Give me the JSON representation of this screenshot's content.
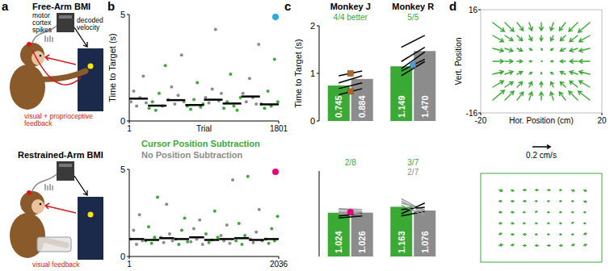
{
  "diagram": {
    "panel_labels": [
      "a",
      "b",
      "c",
      "d"
    ],
    "free_arm": {
      "title": "Free-Arm BMI",
      "spikes": [
        "motor",
        "cortex",
        "spikes"
      ],
      "decoder": [
        "decoded",
        "velocity"
      ],
      "feedback": [
        "visual + proprioceptive",
        "feedback"
      ]
    },
    "restrained_arm": {
      "title": "Restrained-Arm BMI",
      "feedback": [
        "visual feedback"
      ]
    }
  },
  "chart_data": [
    {
      "type": "scatter",
      "ylabel": "Time to Target (s)",
      "xlabel": "Trial",
      "xlim": [
        1,
        1801
      ],
      "xticks": [
        1,
        1801
      ],
      "ylim": [
        0,
        5
      ],
      "yticks": [
        0,
        5
      ],
      "legend": "bottom",
      "series": [
        {
          "name": "Cursor Position Subtraction",
          "color": "#3aaa35",
          "marker": "circle",
          "x": [
            240,
            280,
            320,
            360,
            400,
            435,
            700,
            740,
            780,
            820,
            860,
            890,
            1140,
            1180,
            1220,
            1260,
            1300,
            1340,
            1590,
            1630,
            1670,
            1710,
            1750,
            1790
          ],
          "values": [
            0.6,
            0.9,
            0.5,
            1.3,
            0.7,
            2.6,
            0.7,
            0.55,
            1.0,
            1.8,
            0.65,
            0.8,
            0.6,
            0.9,
            2.2,
            0.7,
            0.5,
            1.1,
            0.8,
            0.6,
            1.4,
            0.7,
            2.9,
            0.9
          ]
        },
        {
          "name": "No Position Subtraction",
          "color": "#8c8c8c",
          "marker": "circle",
          "x": [
            20,
            55,
            90,
            130,
            170,
            205,
            470,
            510,
            550,
            590,
            630,
            660,
            920,
            960,
            1000,
            1040,
            1080,
            1110,
            1370,
            1410,
            1450,
            1490,
            1530,
            1560
          ],
          "values": [
            0.9,
            1.4,
            0.7,
            1.1,
            2.1,
            0.85,
            1.0,
            1.6,
            0.8,
            1.2,
            3.1,
            0.9,
            1.1,
            0.85,
            1.5,
            4.3,
            0.95,
            1.3,
            1.3,
            0.9,
            2.0,
            1.1,
            0.8,
            3.6
          ]
        }
      ],
      "block_means": [
        {
          "start": 1,
          "end": 225,
          "value": 1.05
        },
        {
          "start": 226,
          "end": 450,
          "value": 0.72
        },
        {
          "start": 451,
          "end": 675,
          "value": 0.98
        },
        {
          "start": 676,
          "end": 900,
          "value": 0.75
        },
        {
          "start": 901,
          "end": 1125,
          "value": 1.0
        },
        {
          "start": 1126,
          "end": 1350,
          "value": 0.82
        },
        {
          "start": 1351,
          "end": 1575,
          "value": 1.15
        },
        {
          "start": 1576,
          "end": 1801,
          "value": 0.78
        }
      ],
      "highlight": {
        "color": "#29abe2",
        "marker": "circle"
      }
    },
    {
      "type": "scatter",
      "xlim": [
        1,
        2036
      ],
      "xticks": [
        1,
        2036
      ],
      "ylim": [
        0,
        5
      ],
      "yticks": [
        0,
        5
      ],
      "series": [
        {
          "color": "#3aaa35",
          "marker": "circle",
          "x": [
            225,
            265,
            305,
            345,
            385,
            635,
            675,
            715,
            755,
            795,
            1045,
            1085,
            1125,
            1165,
            1205,
            1455,
            1495,
            1535,
            1575,
            1615,
            1860,
            1900,
            1940,
            1980,
            2020
          ],
          "values": [
            0.9,
            1.7,
            0.75,
            1.1,
            3.4,
            1.0,
            0.7,
            1.5,
            2.2,
            0.85,
            1.3,
            0.8,
            0.95,
            2.6,
            1.1,
            0.9,
            1.9,
            0.7,
            1.2,
            4.6,
            1.0,
            0.75,
            1.6,
            0.9,
            2.3
          ]
        },
        {
          "color": "#8c8c8c",
          "marker": "circle",
          "x": [
            20,
            60,
            100,
            140,
            180,
            430,
            470,
            510,
            550,
            590,
            840,
            880,
            920,
            960,
            1000,
            1250,
            1290,
            1330,
            1370,
            1410,
            1650,
            1690,
            1730,
            1770,
            1810
          ],
          "values": [
            1.0,
            1.5,
            0.7,
            2.4,
            0.9,
            1.1,
            0.8,
            3.0,
            1.3,
            0.9,
            0.85,
            1.6,
            1.0,
            2.1,
            0.7,
            1.2,
            0.9,
            1.8,
            0.75,
            4.4,
            1.0,
            0.8,
            1.4,
            2.7,
            0.9
          ]
        }
      ],
      "block_means": [
        {
          "start": 1,
          "end": 204,
          "value": 1.0
        },
        {
          "start": 205,
          "end": 408,
          "value": 0.95
        },
        {
          "start": 409,
          "end": 612,
          "value": 1.05
        },
        {
          "start": 613,
          "end": 816,
          "value": 1.0
        },
        {
          "start": 817,
          "end": 1020,
          "value": 1.1
        },
        {
          "start": 1021,
          "end": 1224,
          "value": 0.95
        },
        {
          "start": 1225,
          "end": 1428,
          "value": 1.0
        },
        {
          "start": 1429,
          "end": 1632,
          "value": 1.05
        },
        {
          "start": 1633,
          "end": 1836,
          "value": 0.95
        },
        {
          "start": 1837,
          "end": 2036,
          "value": 1.0
        }
      ],
      "highlight": {
        "color": "#e6007e",
        "marker": "circle"
      }
    },
    {
      "type": "bar",
      "ylabel": "Time to Target (s)",
      "categories": [
        "Monkey J",
        "Monkey R"
      ],
      "ylim": [
        0,
        2
      ],
      "yticks": [
        0,
        1,
        2
      ],
      "data_labels": true,
      "series": [
        {
          "color": "#3aaa35",
          "values": [
            0.745,
            1.149
          ],
          "value_labels": [
            "0.745",
            "1.149"
          ]
        },
        {
          "color": "#8c8c8c",
          "values": [
            0.884,
            1.47
          ],
          "value_labels": [
            "0.884",
            "1.470"
          ]
        }
      ],
      "sessions": [
        [
          [
            0.55,
            0.68
          ],
          [
            0.68,
            0.8
          ],
          [
            0.8,
            0.95
          ],
          [
            0.95,
            1.05
          ]
        ],
        [
          [
            0.95,
            1.25
          ],
          [
            1.05,
            1.3
          ],
          [
            1.1,
            1.45
          ],
          [
            1.25,
            1.55
          ],
          [
            1.55,
            1.8
          ]
        ]
      ],
      "annotations": [
        [
          {
            "text": "4/4 better",
            "color": "#3aaa35"
          }
        ],
        [
          {
            "text": "5/5",
            "color": "#3aaa35"
          }
        ]
      ],
      "highlights": [
        [
          {
            "value": 0.62,
            "color": "#b5651d",
            "marker": "square"
          },
          {
            "value": 1.0,
            "color": "#b5651d",
            "marker": "square"
          }
        ],
        [
          {
            "value": 1.18,
            "color": "#4a9fd8",
            "marker": "square"
          }
        ]
      ]
    },
    {
      "type": "bar",
      "categories": [
        null,
        null
      ],
      "ylim": [
        0,
        2
      ],
      "yticks": [
        0,
        1,
        2
      ],
      "tick_labels": false,
      "data_labels": true,
      "series": [
        {
          "color": "#3aaa35",
          "values": [
            1.024,
            1.163
          ],
          "value_labels": [
            "1.024",
            "1.163"
          ]
        },
        {
          "color": "#8c8c8c",
          "values": [
            1.026,
            1.076
          ],
          "value_labels": [
            "1.026",
            "1.076"
          ]
        }
      ],
      "sessions": [
        [
          [
            1.0,
            0.95
          ],
          [
            1.05,
            1.0
          ],
          [
            0.95,
            1.0
          ],
          [
            1.1,
            1.05
          ],
          [
            1.02,
            0.98
          ],
          [
            0.9,
            0.95
          ],
          [
            1.12,
            1.1
          ],
          [
            1.04,
            1.03
          ]
        ],
        [
          [
            1.35,
            1.05
          ],
          [
            1.25,
            1.1
          ],
          [
            1.0,
            1.25
          ],
          [
            1.1,
            1.15
          ],
          [
            0.95,
            1.05
          ],
          [
            1.3,
            1.0
          ],
          [
            1.2,
            0.95
          ]
        ]
      ],
      "annotations": [
        [
          {
            "text": "2/8",
            "color": "#3aaa35"
          }
        ],
        [
          {
            "text": "3/7",
            "color": "#3aaa35"
          },
          {
            "text": "2/7",
            "color": "#8c8c8c"
          }
        ]
      ],
      "highlights": [
        [
          {
            "value": 1.04,
            "color": "#e6007e",
            "marker": "circle"
          }
        ],
        []
      ]
    },
    {
      "type": "quiver",
      "xlabel": "Hor. Position (cm)",
      "ylabel": "Vert. Position",
      "xlim": [
        -20,
        20
      ],
      "xticks": [
        -20,
        20
      ],
      "ylim": [
        -16,
        16
      ],
      "yticks": [
        -16,
        16
      ],
      "color": "#3aaa35",
      "x": [
        -16,
        -12,
        -8,
        -4,
        0,
        4,
        8,
        12,
        16
      ],
      "y": [
        12,
        8,
        4,
        0,
        -4,
        -8,
        -12
      ],
      "u": [
        [
          0.13,
          0.1,
          0.07,
          0.03,
          0.0,
          -0.03,
          -0.07,
          -0.1,
          -0.13
        ],
        [
          0.12,
          0.09,
          0.06,
          0.03,
          0.0,
          -0.03,
          -0.06,
          -0.09,
          -0.12
        ],
        [
          0.12,
          0.09,
          0.06,
          0.03,
          0.01,
          -0.03,
          -0.06,
          -0.09,
          -0.12
        ],
        [
          0.12,
          0.09,
          0.06,
          0.03,
          0.01,
          -0.03,
          -0.06,
          -0.09,
          -0.12
        ],
        [
          0.12,
          0.09,
          0.06,
          0.03,
          0.0,
          -0.03,
          -0.06,
          -0.09,
          -0.12
        ],
        [
          0.12,
          0.09,
          0.06,
          0.03,
          0.0,
          -0.03,
          -0.06,
          -0.09,
          -0.12
        ],
        [
          0.13,
          0.1,
          0.07,
          0.03,
          0.0,
          -0.03,
          -0.07,
          -0.1,
          -0.13
        ]
      ],
      "v": [
        [
          -0.1,
          -0.1,
          -0.09,
          -0.09,
          -0.09,
          -0.09,
          -0.09,
          -0.1,
          -0.11
        ],
        [
          -0.07,
          -0.06,
          -0.06,
          -0.06,
          -0.06,
          -0.06,
          -0.06,
          -0.07,
          -0.07
        ],
        [
          -0.03,
          -0.03,
          -0.03,
          -0.02,
          -0.02,
          -0.02,
          -0.03,
          -0.03,
          -0.03
        ],
        [
          0.0,
          0.0,
          0.0,
          0.0,
          0.0,
          0.0,
          0.0,
          0.0,
          0.0
        ],
        [
          0.03,
          0.03,
          0.03,
          0.02,
          0.02,
          0.02,
          0.03,
          0.03,
          0.03
        ],
        [
          0.07,
          0.06,
          0.06,
          0.06,
          0.06,
          0.06,
          0.06,
          0.07,
          0.07
        ],
        [
          0.11,
          0.1,
          0.09,
          0.09,
          0.09,
          0.09,
          0.09,
          0.1,
          0.1
        ]
      ],
      "scale": {
        "value": 0.2,
        "label": "0.2 cm/s"
      }
    },
    {
      "type": "quiver",
      "xlim": [
        -20,
        20
      ],
      "ylim": [
        -16,
        16
      ],
      "tick_labels": false,
      "color": "#3aaa35",
      "x": [
        -14,
        -10,
        -6,
        -2,
        2,
        6,
        10,
        14
      ],
      "y": [
        10,
        6,
        2,
        -2,
        -6,
        -10
      ],
      "u": [
        [
          0.04,
          0.03,
          0.03,
          0.03,
          0.03,
          0.02,
          0.03,
          0.03
        ],
        [
          0.03,
          0.03,
          0.03,
          0.02,
          0.02,
          0.02,
          0.02,
          0.03
        ],
        [
          0.03,
          0.03,
          0.02,
          0.02,
          0.02,
          0.02,
          0.02,
          0.02
        ],
        [
          0.03,
          0.03,
          0.02,
          0.02,
          0.02,
          0.02,
          0.02,
          0.02
        ],
        [
          0.03,
          0.03,
          0.03,
          0.02,
          0.02,
          0.02,
          0.02,
          0.03
        ],
        [
          0.04,
          0.03,
          0.03,
          0.03,
          0.03,
          0.03,
          0.03,
          0.03
        ]
      ],
      "v": [
        [
          -0.01,
          -0.01,
          0.0,
          0.0,
          0.0,
          0.0,
          -0.01,
          -0.01
        ],
        [
          0.0,
          0.0,
          0.0,
          0.0,
          0.0,
          0.0,
          0.0,
          -0.01
        ],
        [
          0.0,
          0.0,
          0.0,
          0.01,
          0.0,
          0.0,
          0.0,
          0.0
        ],
        [
          0.0,
          0.0,
          0.0,
          0.0,
          0.0,
          0.0,
          0.01,
          0.0
        ],
        [
          0.01,
          0.0,
          0.0,
          0.0,
          0.0,
          0.0,
          0.0,
          0.01
        ],
        [
          0.01,
          0.01,
          0.0,
          0.0,
          0.0,
          0.0,
          0.01,
          0.01
        ]
      ]
    }
  ]
}
